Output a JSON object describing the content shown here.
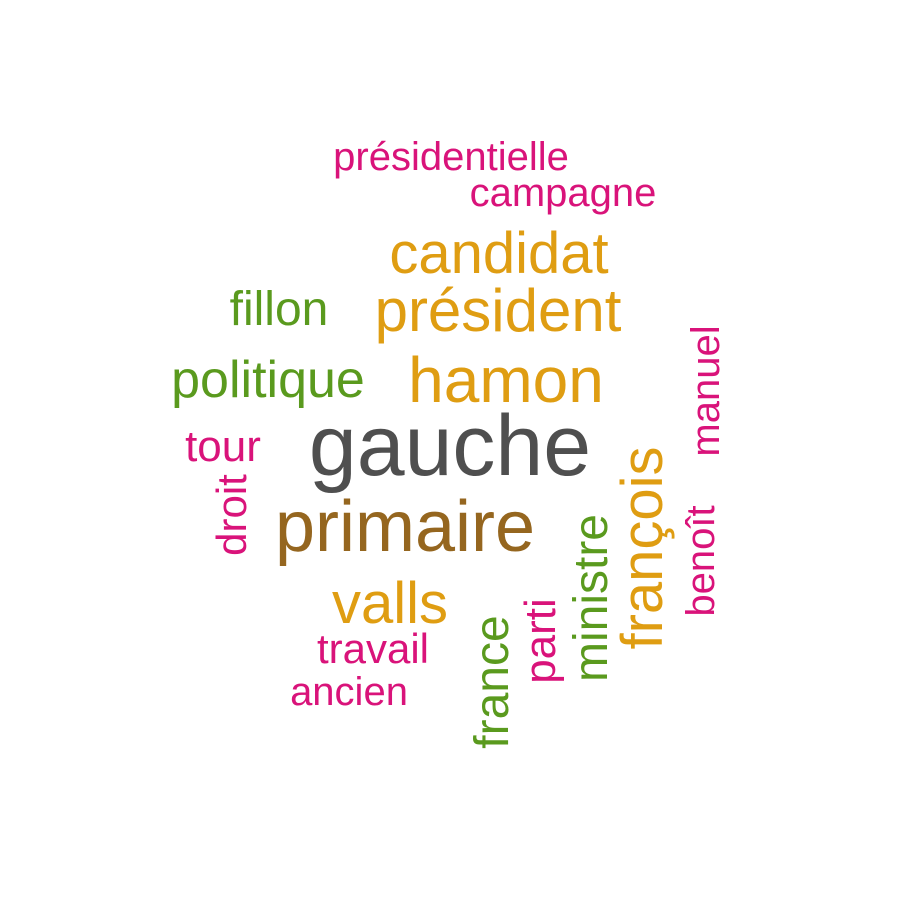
{
  "colors": {
    "dark_gray": "#4f4f4f",
    "brown": "#95661f",
    "gold": "#df9d12",
    "green": "#5a9a1e",
    "magenta": "#d9137a"
  },
  "words": [
    {
      "text": "gauche",
      "color": "#4f4f4f",
      "orientation": "horizontal"
    },
    {
      "text": "primaire",
      "color": "#95661f",
      "orientation": "horizontal"
    },
    {
      "text": "hamon",
      "color": "#df9d12",
      "orientation": "horizontal"
    },
    {
      "text": "président",
      "color": "#df9d12",
      "orientation": "horizontal"
    },
    {
      "text": "candidat",
      "color": "#df9d12",
      "orientation": "horizontal"
    },
    {
      "text": "valls",
      "color": "#df9d12",
      "orientation": "horizontal"
    },
    {
      "text": "françois",
      "color": "#df9d12",
      "orientation": "vertical"
    },
    {
      "text": "politique",
      "color": "#5a9a1e",
      "orientation": "horizontal"
    },
    {
      "text": "fillon",
      "color": "#5a9a1e",
      "orientation": "horizontal"
    },
    {
      "text": "ministre",
      "color": "#5a9a1e",
      "orientation": "vertical"
    },
    {
      "text": "france",
      "color": "#5a9a1e",
      "orientation": "vertical"
    },
    {
      "text": "présidentielle",
      "color": "#d9137a",
      "orientation": "horizontal"
    },
    {
      "text": "campagne",
      "color": "#d9137a",
      "orientation": "horizontal"
    },
    {
      "text": "tour",
      "color": "#d9137a",
      "orientation": "horizontal"
    },
    {
      "text": "droit",
      "color": "#d9137a",
      "orientation": "vertical"
    },
    {
      "text": "travail",
      "color": "#d9137a",
      "orientation": "horizontal"
    },
    {
      "text": "ancien",
      "color": "#d9137a",
      "orientation": "horizontal"
    },
    {
      "text": "parti",
      "color": "#d9137a",
      "orientation": "vertical"
    },
    {
      "text": "manuel",
      "color": "#d9137a",
      "orientation": "vertical"
    },
    {
      "text": "benoît",
      "color": "#d9137a",
      "orientation": "vertical"
    }
  ]
}
